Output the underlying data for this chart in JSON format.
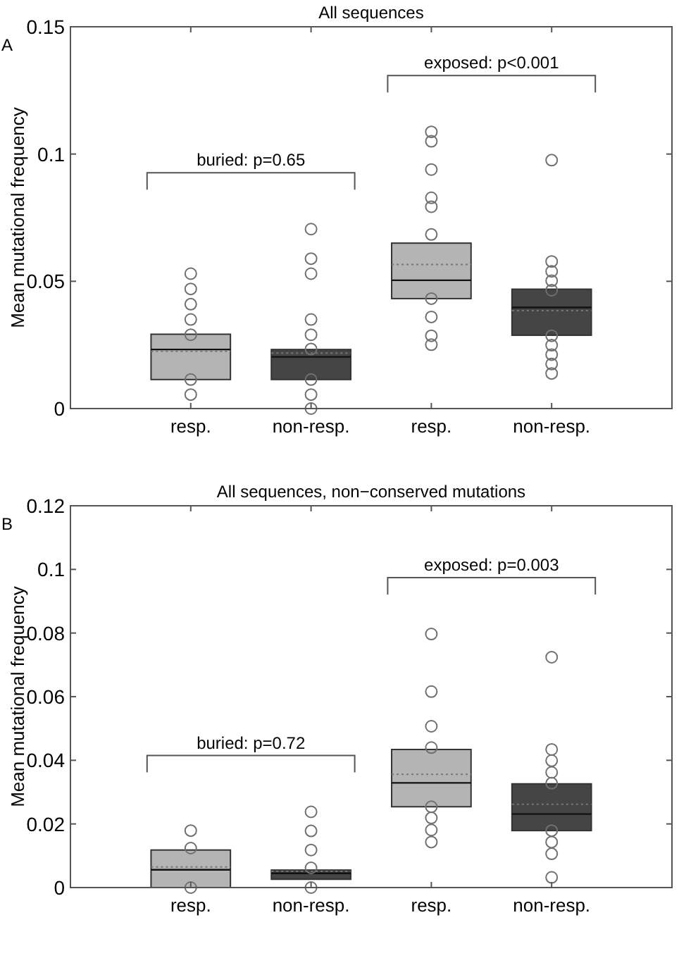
{
  "chart_data": [
    {
      "type": "box",
      "title": "All sequences",
      "ylabel": "Mean mutational frequency",
      "categories": [
        "resp.",
        "non-resp.",
        "resp.",
        "non-resp."
      ],
      "ylim": [
        0,
        0.15
      ],
      "yticks": [
        0,
        0.05,
        {
          "value": 0.1,
          "label": "0.1"
        },
        0.15
      ],
      "marker": "circle",
      "colors": [
        "#b4b4b4",
        "#454545",
        "#b4b4b4",
        "#454545"
      ],
      "boxes": [
        {
          "q1": 0.0114,
          "median": 0.0232,
          "q3": 0.0292,
          "mean": 0.0225,
          "outliers": [
            0.053,
            0.047,
            0.041,
            0.035,
            0.029,
            0.0114,
            0.0055
          ]
        },
        {
          "q1": 0.0114,
          "median": 0.0203,
          "q3": 0.0232,
          "mean": 0.0218,
          "outliers": [
            0.0705,
            0.0589,
            0.053,
            0.035,
            0.029,
            0.0234,
            0.0114,
            0.0055,
            0
          ]
        },
        {
          "q1": 0.0432,
          "median": 0.0504,
          "q3": 0.065,
          "mean": 0.0566,
          "outliers": [
            0.1087,
            0.105,
            0.0939,
            0.0828,
            0.0793,
            0.0684,
            0.0432,
            0.036,
            0.0286,
            0.0251
          ]
        },
        {
          "q1": 0.0288,
          "median": 0.0397,
          "q3": 0.0469,
          "mean": 0.0385,
          "outliers": [
            0.0976,
            0.0578,
            0.0539,
            0.0502,
            0.0465,
            0.0286,
            0.0249,
            0.0212,
            0.0175,
            0.0138
          ]
        }
      ],
      "annotations": [
        "A",
        "buried: p=0.65",
        "exposed: p<0.001"
      ]
    },
    {
      "type": "box",
      "title": "All sequences, non−conserved mutations",
      "ylabel": "Mean mutational frequency",
      "categories": [
        "resp.",
        "non-resp.",
        "resp.",
        "non-resp."
      ],
      "ylim": [
        0,
        0.12
      ],
      "yticks": [
        0,
        0.02,
        0.04,
        0.06,
        0.08,
        {
          "value": 0.1,
          "label": "0.1"
        },
        0.12
      ],
      "marker": "circle",
      "colors": [
        "#b4b4b4",
        "#454545",
        "#b4b4b4",
        "#454545"
      ],
      "boxes": [
        {
          "q1": 0,
          "median": 0.0056,
          "q3": 0.0118,
          "mean": 0.0065,
          "outliers": [
            0.0179,
            0.0124,
            0
          ]
        },
        {
          "q1": 0.0026,
          "median": 0.0045,
          "q3": 0.0055,
          "mean": 0.0051,
          "outliers": [
            0.0238,
            0.0178,
            0.0118,
            0.0062,
            0
          ]
        },
        {
          "q1": 0.0254,
          "median": 0.0329,
          "q3": 0.0434,
          "mean": 0.0356,
          "outliers": [
            0.0797,
            0.0616,
            0.0507,
            0.044,
            0.0254,
            0.0219,
            0.0181,
            0.0143
          ]
        },
        {
          "q1": 0.0179,
          "median": 0.0231,
          "q3": 0.0326,
          "mean": 0.0262,
          "outliers": [
            0.0724,
            0.0434,
            0.0399,
            0.0362,
            0.0328,
            0.0179,
            0.0143,
            0.0106,
            0.0032
          ]
        }
      ],
      "annotations": [
        "B",
        "buried: p=0.72",
        "exposed: p=0.003"
      ]
    }
  ]
}
